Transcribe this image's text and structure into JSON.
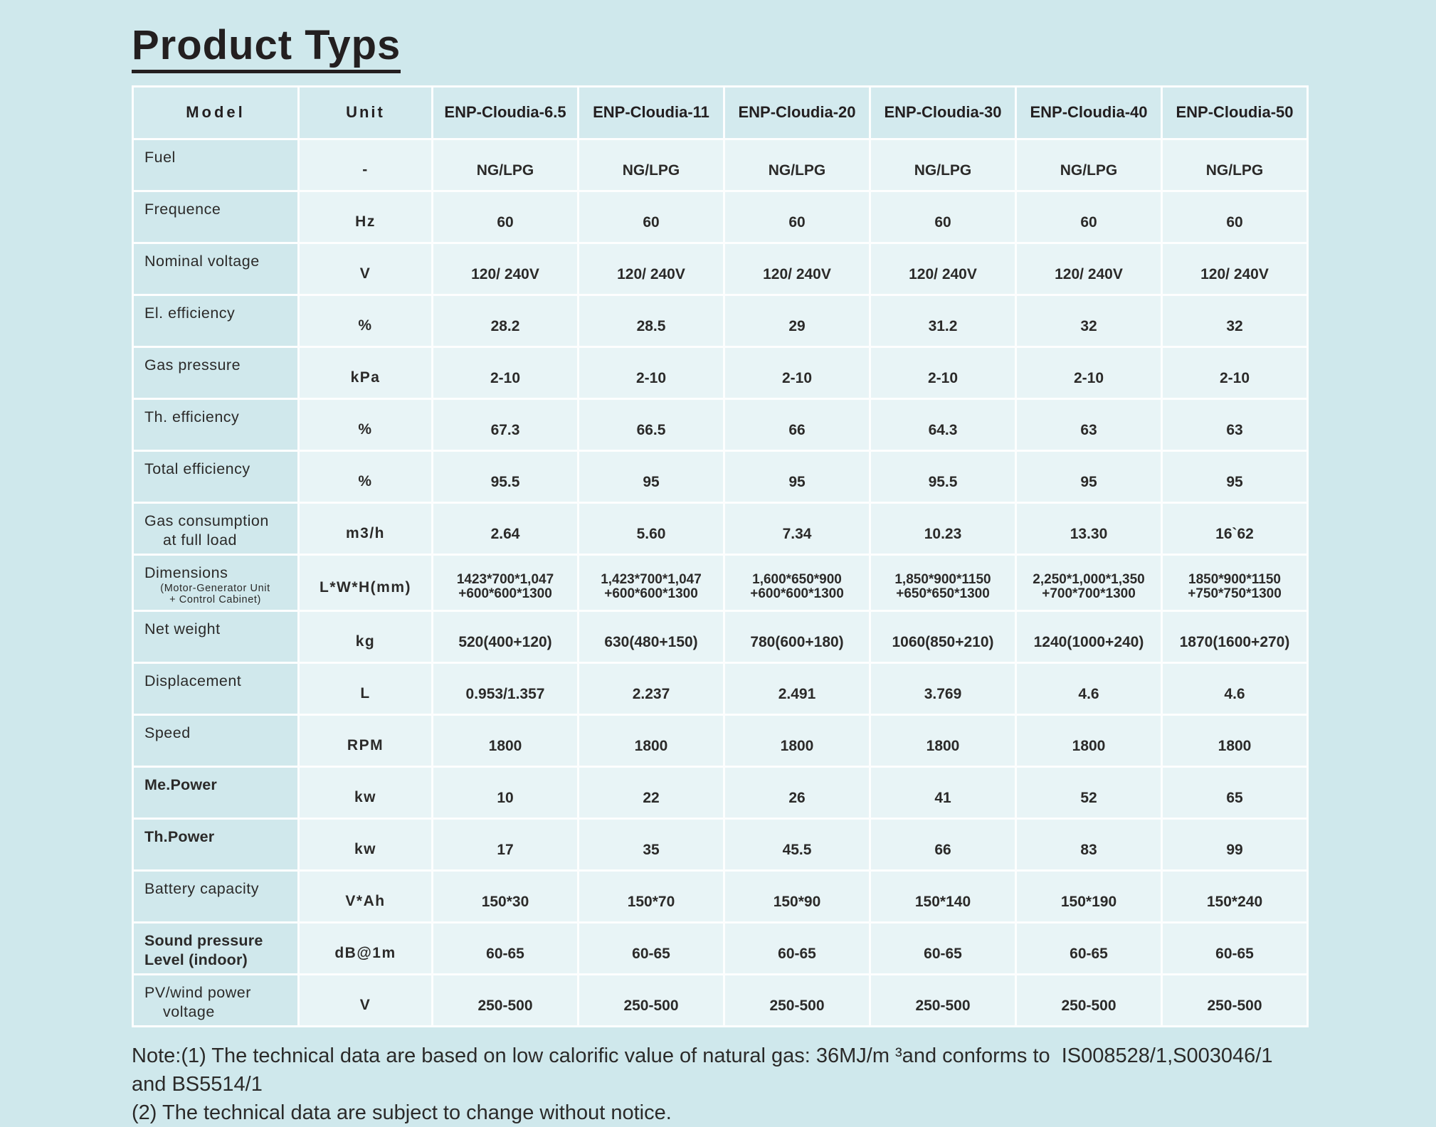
{
  "page": {
    "title": "Product Typs"
  },
  "table": {
    "headers": [
      "Model",
      "Unit",
      "ENP-Cloudia-6.5",
      "ENP-Cloudia-11",
      "ENP-Cloudia-20",
      "ENP-Cloudia-30",
      "ENP-Cloudia-40",
      "ENP-Cloudia-50"
    ],
    "rows": [
      {
        "label_lines": [
          "Fuel"
        ],
        "label_bold": false,
        "sublabel_lines": [],
        "unit": "-",
        "values": [
          [
            "NG/LPG"
          ],
          [
            "NG/LPG"
          ],
          [
            "NG/LPG"
          ],
          [
            "NG/LPG"
          ],
          [
            "NG/LPG"
          ],
          [
            "NG/LPG"
          ]
        ]
      },
      {
        "label_lines": [
          "Frequence"
        ],
        "label_bold": false,
        "sublabel_lines": [],
        "unit": "Hz",
        "values": [
          [
            "60"
          ],
          [
            "60"
          ],
          [
            "60"
          ],
          [
            "60"
          ],
          [
            "60"
          ],
          [
            "60"
          ]
        ]
      },
      {
        "label_lines": [
          "Nominal voltage"
        ],
        "label_bold": false,
        "sublabel_lines": [],
        "unit": "V",
        "values": [
          [
            "120/ 240V"
          ],
          [
            "120/ 240V"
          ],
          [
            "120/ 240V"
          ],
          [
            "120/ 240V"
          ],
          [
            "120/ 240V"
          ],
          [
            "120/ 240V"
          ]
        ]
      },
      {
        "label_lines": [
          "El. efficiency"
        ],
        "label_bold": false,
        "sublabel_lines": [],
        "unit": "%",
        "values": [
          [
            "28.2"
          ],
          [
            "28.5"
          ],
          [
            "29"
          ],
          [
            "31.2"
          ],
          [
            "32"
          ],
          [
            "32"
          ]
        ]
      },
      {
        "label_lines": [
          "Gas pressure"
        ],
        "label_bold": false,
        "sublabel_lines": [],
        "unit": "kPa",
        "values": [
          [
            "2-10"
          ],
          [
            "2-10"
          ],
          [
            "2-10"
          ],
          [
            "2-10"
          ],
          [
            "2-10"
          ],
          [
            "2-10"
          ]
        ]
      },
      {
        "label_lines": [
          "Th. efficiency"
        ],
        "label_bold": false,
        "sublabel_lines": [],
        "unit": "%",
        "values": [
          [
            "67.3"
          ],
          [
            "66.5"
          ],
          [
            "66"
          ],
          [
            "64.3"
          ],
          [
            "63"
          ],
          [
            "63"
          ]
        ]
      },
      {
        "label_lines": [
          "Total efficiency"
        ],
        "label_bold": false,
        "sublabel_lines": [],
        "unit": "%",
        "values": [
          [
            "95.5"
          ],
          [
            "95"
          ],
          [
            "95"
          ],
          [
            "95.5"
          ],
          [
            "95"
          ],
          [
            "95"
          ]
        ]
      },
      {
        "label_lines": [
          "Gas consumption",
          "at full load"
        ],
        "label_indent2": true,
        "label_bold": false,
        "sublabel_lines": [],
        "unit": "m3/h",
        "values": [
          [
            "2.64"
          ],
          [
            "5.60"
          ],
          [
            "7.34"
          ],
          [
            "10.23"
          ],
          [
            "13.30"
          ],
          [
            "16`62"
          ]
        ]
      },
      {
        "label_lines": [
          "Dimensions"
        ],
        "label_bold": false,
        "sublabel_lines": [
          "(Motor-Generator Unit",
          "+ Control Cabinet)"
        ],
        "unit": "L*W*H(mm)",
        "tall": true,
        "small_values": true,
        "values": [
          [
            "1423*700*1,047",
            "+600*600*1300"
          ],
          [
            "1,423*700*1,047",
            "+600*600*1300"
          ],
          [
            "1,600*650*900",
            "+600*600*1300"
          ],
          [
            "1,850*900*1150",
            "+650*650*1300"
          ],
          [
            "2,250*1,000*1,350",
            "+700*700*1300"
          ],
          [
            "1850*900*1150",
            "+750*750*1300"
          ]
        ]
      },
      {
        "label_lines": [
          "Net weight"
        ],
        "label_bold": false,
        "sublabel_lines": [],
        "unit": "kg",
        "values": [
          [
            "520(400+120)"
          ],
          [
            "630(480+150)"
          ],
          [
            "780(600+180)"
          ],
          [
            "1060(850+210)"
          ],
          [
            "1240(1000+240)"
          ],
          [
            "1870(1600+270)"
          ]
        ]
      },
      {
        "label_lines": [
          "Displacement"
        ],
        "label_bold": false,
        "sublabel_lines": [],
        "unit": "L",
        "values": [
          [
            "0.953/1.357"
          ],
          [
            "2.237"
          ],
          [
            "2.491"
          ],
          [
            "3.769"
          ],
          [
            "4.6"
          ],
          [
            "4.6"
          ]
        ]
      },
      {
        "label_lines": [
          "Speed"
        ],
        "label_bold": false,
        "sublabel_lines": [],
        "unit": "RPM",
        "values": [
          [
            "1800"
          ],
          [
            "1800"
          ],
          [
            "1800"
          ],
          [
            "1800"
          ],
          [
            "1800"
          ],
          [
            "1800"
          ]
        ]
      },
      {
        "label_lines": [
          "Me.Power"
        ],
        "label_bold": true,
        "sublabel_lines": [],
        "unit": "kw",
        "values": [
          [
            "10"
          ],
          [
            "22"
          ],
          [
            "26"
          ],
          [
            "41"
          ],
          [
            "52"
          ],
          [
            "65"
          ]
        ]
      },
      {
        "label_lines": [
          "Th.Power"
        ],
        "label_bold": true,
        "sublabel_lines": [],
        "unit": "kw",
        "values": [
          [
            "17"
          ],
          [
            "35"
          ],
          [
            "45.5"
          ],
          [
            "66"
          ],
          [
            "83"
          ],
          [
            "99"
          ]
        ]
      },
      {
        "label_lines": [
          "Battery capacity"
        ],
        "label_bold": false,
        "sublabel_lines": [],
        "unit": "V*Ah",
        "values": [
          [
            "150*30"
          ],
          [
            "150*70"
          ],
          [
            "150*90"
          ],
          [
            "150*140"
          ],
          [
            "150*190"
          ],
          [
            "150*240"
          ]
        ]
      },
      {
        "label_lines": [
          "Sound pressure",
          "Level (indoor)"
        ],
        "label_bold": true,
        "sublabel_lines": [],
        "unit": "dB@1m",
        "values": [
          [
            "60-65"
          ],
          [
            "60-65"
          ],
          [
            "60-65"
          ],
          [
            "60-65"
          ],
          [
            "60-65"
          ],
          [
            "60-65"
          ]
        ]
      },
      {
        "label_lines": [
          "PV/wind power",
          "voltage"
        ],
        "label_indent2": true,
        "label_bold": false,
        "sublabel_lines": [],
        "unit": "V",
        "values": [
          [
            "250-500"
          ],
          [
            "250-500"
          ],
          [
            "250-500"
          ],
          [
            "250-500"
          ],
          [
            "250-500"
          ],
          [
            "250-500"
          ]
        ]
      }
    ]
  },
  "notes": [
    "Note:(1) The technical data are based on low calorific value of natural gas: 36MJ/m ³and conforms to  IS008528/1,S003046/1",
    "and BS5514/1",
    "(2) The technical data are subject to change without notice."
  ]
}
